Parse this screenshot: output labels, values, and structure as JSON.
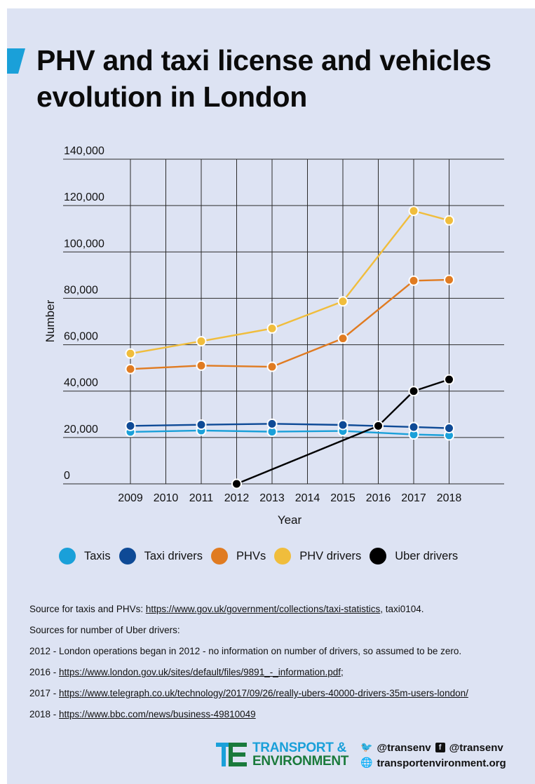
{
  "page": {
    "title": "PHV and taxi license and vehicles evolution in London"
  },
  "colors": {
    "background": "#dde3f3",
    "title_marker": "#1aa0d9"
  },
  "chart_data": {
    "type": "line",
    "title": "",
    "xlabel": "Year",
    "ylabel": "Number",
    "categories": [
      "2009",
      "2010",
      "2011",
      "2012",
      "2013",
      "2014",
      "2015",
      "2016",
      "2017",
      "2018"
    ],
    "yticks": [
      "140,000",
      "120,000",
      "100,000",
      "80,000",
      "60,000",
      "40,000",
      "20,000",
      "0"
    ],
    "ylim": [
      0,
      140000
    ],
    "grid": true,
    "legend_position": "bottom",
    "series": [
      {
        "name": "Taxis",
        "color": "#1aa0d9",
        "points": [
          [
            2009,
            22400
          ],
          [
            2011,
            23000
          ],
          [
            2013,
            22500
          ],
          [
            2015,
            22800
          ],
          [
            2017,
            21300
          ],
          [
            2018,
            20900
          ]
        ]
      },
      {
        "name": "Taxi drivers",
        "color": "#0e4a96",
        "points": [
          [
            2009,
            25000
          ],
          [
            2011,
            25500
          ],
          [
            2013,
            25900
          ],
          [
            2015,
            25400
          ],
          [
            2017,
            24500
          ],
          [
            2018,
            24000
          ]
        ]
      },
      {
        "name": "PHVs",
        "color": "#e07b21",
        "points": [
          [
            2009,
            49500
          ],
          [
            2011,
            51000
          ],
          [
            2013,
            50500
          ],
          [
            2015,
            62700
          ],
          [
            2017,
            87600
          ],
          [
            2018,
            88000
          ]
        ]
      },
      {
        "name": "PHV drivers",
        "color": "#f0bd3c",
        "points": [
          [
            2009,
            56200
          ],
          [
            2011,
            61500
          ],
          [
            2013,
            67000
          ],
          [
            2015,
            78700
          ],
          [
            2017,
            117700
          ],
          [
            2018,
            113600
          ]
        ]
      },
      {
        "name": "Uber drivers",
        "color": "#000000",
        "points": [
          [
            2012,
            0
          ],
          [
            2016,
            25000
          ],
          [
            2017,
            40000
          ],
          [
            2018,
            45000
          ]
        ]
      }
    ]
  },
  "sources": {
    "line1_prefix": "Source for taxis and PHVs: ",
    "line1_link": "https://www.gov.uk/government/collections/taxi-statistics",
    "line1_suffix": ", taxi0104.",
    "line2": "Sources for number of Uber drivers:",
    "line3": "2012 - London operations began in 2012 - no information on number of drivers, so assumed to be zero.",
    "line4_prefix": "2016 - ",
    "line4_link": "https://www.london.gov.uk/sites/default/files/9891_-_information.pdf",
    "line4_suffix": ";",
    "line5_prefix": "2017 - ",
    "line5_link": "https://www.telegraph.co.uk/technology/2017/09/26/really-ubers-40000-drivers-35m-users-london/",
    "line6_prefix": "2018 - ",
    "line6_link": "https://www.bbc.com/news/business-49810049"
  },
  "footer": {
    "logo_icon": "transport-environment-logo",
    "brand_line1": "TRANSPORT &",
    "brand_line2": "ENVIRONMENT",
    "twitter_icon": "twitter-icon",
    "twitter": "@transenv",
    "facebook_icon": "facebook-icon",
    "facebook": "@transenv",
    "globe_icon": "globe-icon",
    "website": "transportenvironment.org"
  }
}
